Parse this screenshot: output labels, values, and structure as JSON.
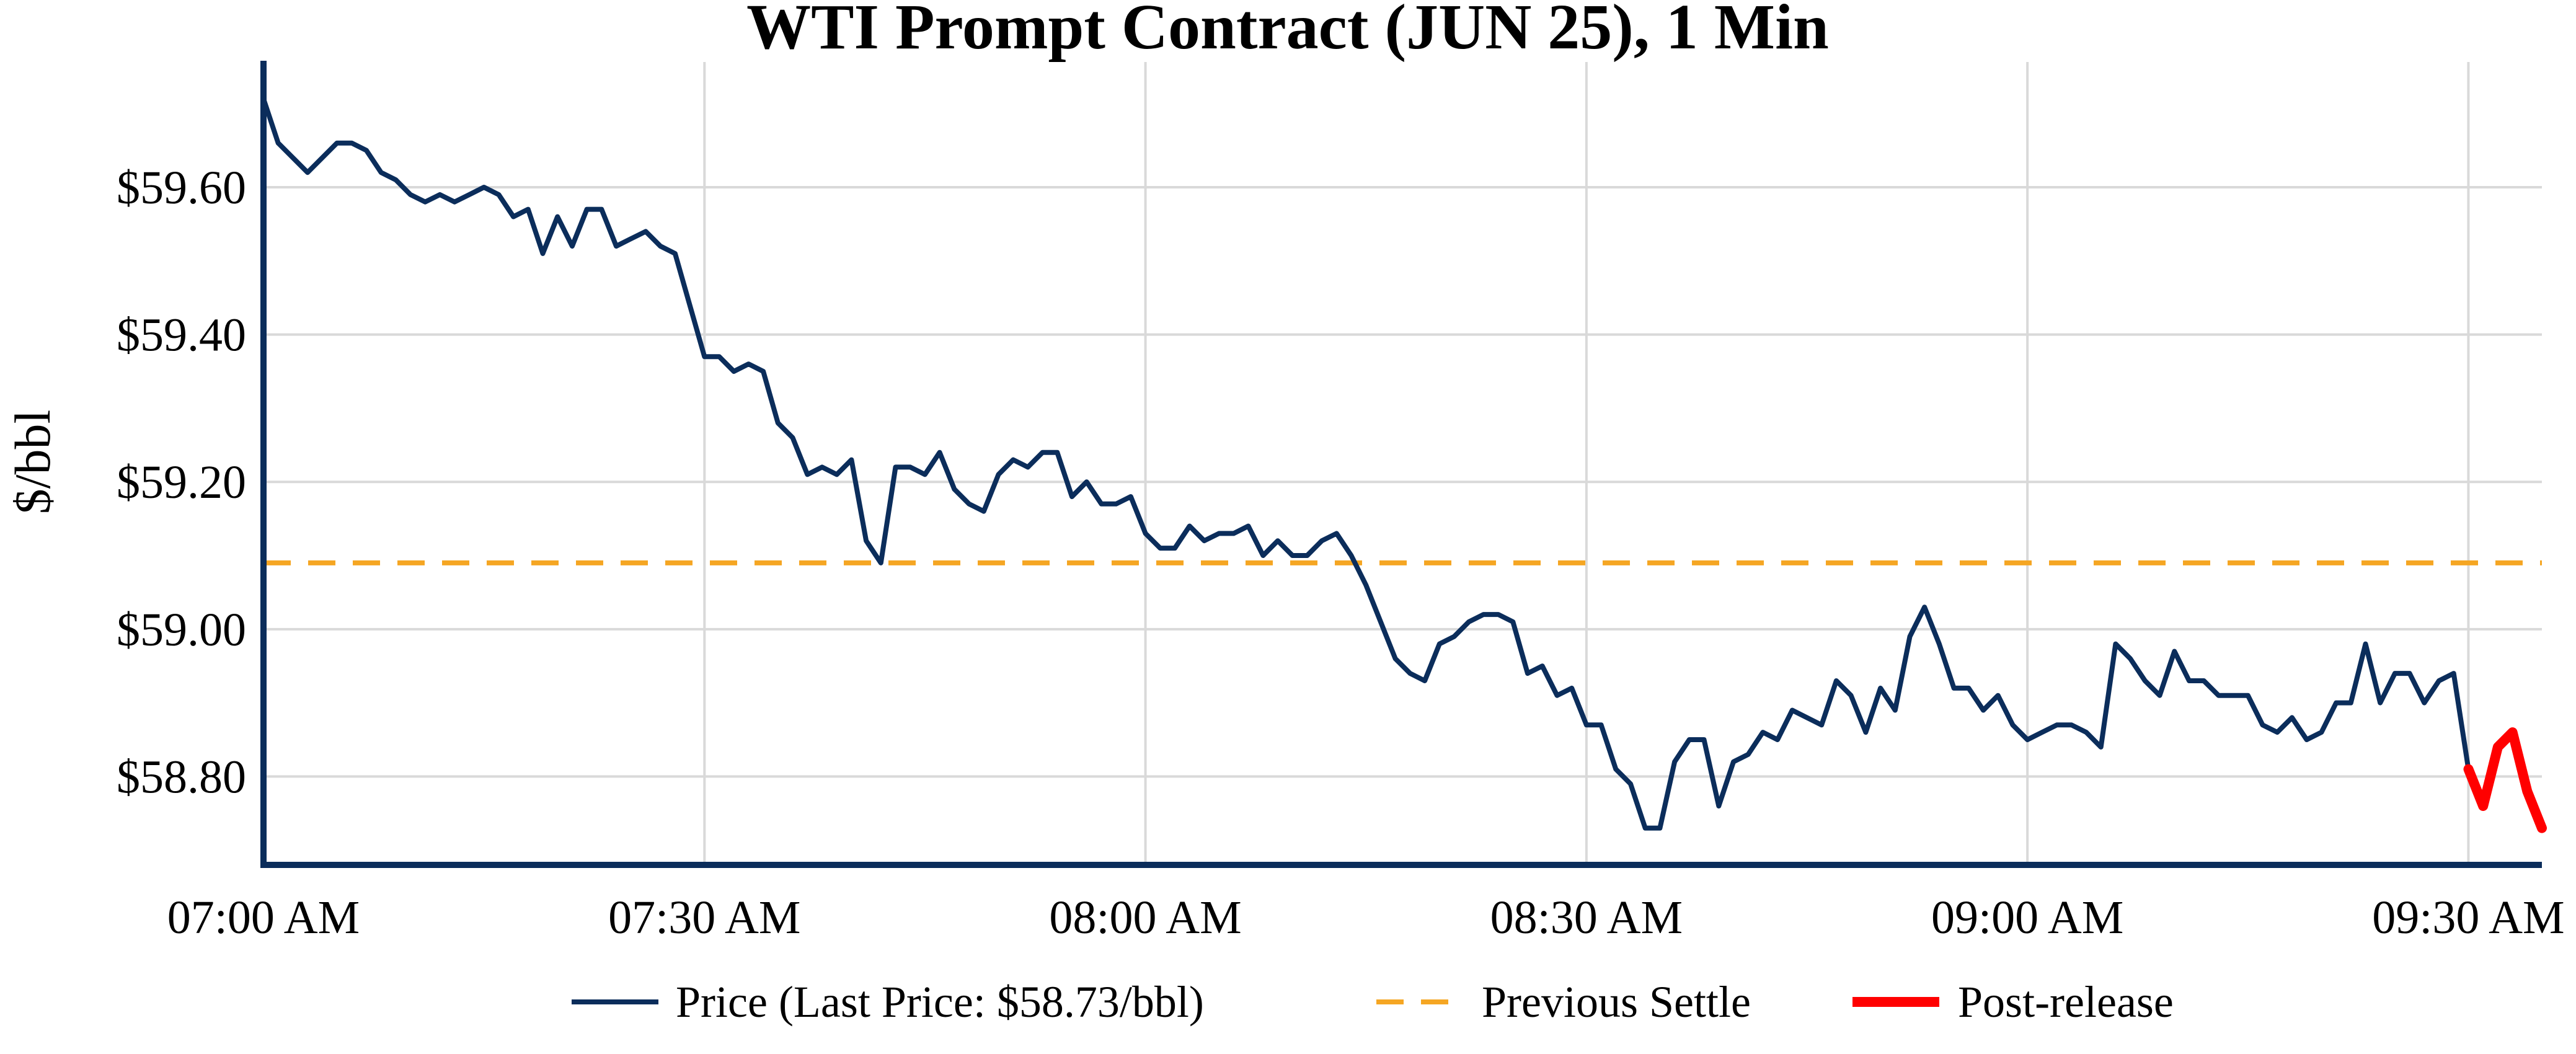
{
  "colors": {
    "price": "#0b2d5b",
    "previous_settle": "#f5a623",
    "post_release": "#ff0000",
    "axis": "#0b2d5b",
    "grid": "#d9d9d9"
  },
  "chart_data": {
    "type": "line",
    "title": "WTI Prompt Contract (JUN 25), 1 Min",
    "xlabel": "",
    "ylabel": "$/bbl",
    "x_ticks": [
      "07:00 AM",
      "07:30 AM",
      "08:00 AM",
      "08:30 AM",
      "09:00 AM",
      "09:30 AM"
    ],
    "y_ticks": [
      "$58.80",
      "$59.00",
      "$59.20",
      "$59.40",
      "$59.60"
    ],
    "y_tick_values": [
      58.8,
      59.0,
      59.2,
      59.4,
      59.6
    ],
    "x_range": [
      "07:00 AM",
      "09:35 AM"
    ],
    "ylim": [
      58.68,
      59.77
    ],
    "grid": true,
    "legend_position": "bottom-center",
    "legend": {
      "price": "Price (Last Price: $58.73/bbl)",
      "previous_settle": "Previous Settle",
      "post_release": "Post-release"
    },
    "previous_settle": 59.09,
    "series": [
      {
        "name": "Price (Last Price: $58.73/bbl)",
        "x": [
          "07:00",
          "07:01",
          "07:02",
          "07:03",
          "07:04",
          "07:05",
          "07:06",
          "07:07",
          "07:08",
          "07:09",
          "07:10",
          "07:11",
          "07:12",
          "07:13",
          "07:14",
          "07:15",
          "07:16",
          "07:17",
          "07:18",
          "07:19",
          "07:20",
          "07:21",
          "07:22",
          "07:23",
          "07:24",
          "07:25",
          "07:26",
          "07:27",
          "07:28",
          "07:29",
          "07:30",
          "07:31",
          "07:32",
          "07:33",
          "07:34",
          "07:35",
          "07:36",
          "07:37",
          "07:38",
          "07:39",
          "07:40",
          "07:41",
          "07:42",
          "07:43",
          "07:44",
          "07:45",
          "07:46",
          "07:47",
          "07:48",
          "07:49",
          "07:50",
          "07:51",
          "07:52",
          "07:53",
          "07:54",
          "07:55",
          "07:56",
          "07:57",
          "07:58",
          "07:59",
          "08:00",
          "08:01",
          "08:02",
          "08:03",
          "08:04",
          "08:05",
          "08:06",
          "08:07",
          "08:08",
          "08:09",
          "08:10",
          "08:11",
          "08:12",
          "08:13",
          "08:14",
          "08:15",
          "08:16",
          "08:17",
          "08:18",
          "08:19",
          "08:20",
          "08:21",
          "08:22",
          "08:23",
          "08:24",
          "08:25",
          "08:26",
          "08:27",
          "08:28",
          "08:29",
          "08:30",
          "08:31",
          "08:32",
          "08:33",
          "08:34",
          "08:35",
          "08:36",
          "08:37",
          "08:38",
          "08:39",
          "08:40",
          "08:41",
          "08:42",
          "08:43",
          "08:44",
          "08:45",
          "08:46",
          "08:47",
          "08:48",
          "08:49",
          "08:50",
          "08:51",
          "08:52",
          "08:53",
          "08:54",
          "08:55",
          "08:56",
          "08:57",
          "08:58",
          "08:59",
          "09:00",
          "09:01",
          "09:02",
          "09:03",
          "09:04",
          "09:05",
          "09:06",
          "09:07",
          "09:08",
          "09:09",
          "09:10",
          "09:11",
          "09:12",
          "09:13",
          "09:14",
          "09:15",
          "09:16",
          "09:17",
          "09:18",
          "09:19",
          "09:20",
          "09:21",
          "09:22",
          "09:23",
          "09:24",
          "09:25",
          "09:26",
          "09:27",
          "09:28",
          "09:29",
          "09:30"
        ],
        "values": [
          59.72,
          59.66,
          59.64,
          59.62,
          59.64,
          59.66,
          59.66,
          59.65,
          59.62,
          59.61,
          59.59,
          59.58,
          59.59,
          59.58,
          59.59,
          59.6,
          59.59,
          59.56,
          59.57,
          59.51,
          59.56,
          59.52,
          59.57,
          59.57,
          59.52,
          59.53,
          59.54,
          59.52,
          59.51,
          59.44,
          59.37,
          59.37,
          59.35,
          59.36,
          59.35,
          59.28,
          59.26,
          59.21,
          59.22,
          59.21,
          59.23,
          59.12,
          59.09,
          59.22,
          59.22,
          59.21,
          59.24,
          59.19,
          59.17,
          59.16,
          59.21,
          59.23,
          59.22,
          59.24,
          59.24,
          59.18,
          59.2,
          59.17,
          59.17,
          59.18,
          59.13,
          59.11,
          59.11,
          59.14,
          59.12,
          59.13,
          59.13,
          59.14,
          59.1,
          59.12,
          59.1,
          59.1,
          59.12,
          59.13,
          59.1,
          59.06,
          59.01,
          58.96,
          58.94,
          58.93,
          58.98,
          58.99,
          59.01,
          59.02,
          59.02,
          59.01,
          58.94,
          58.95,
          58.91,
          58.92,
          58.87,
          58.87,
          58.81,
          58.79,
          58.73,
          58.73,
          58.82,
          58.85,
          58.85,
          58.76,
          58.82,
          58.83,
          58.86,
          58.85,
          58.89,
          58.88,
          58.87,
          58.93,
          58.91,
          58.86,
          58.92,
          58.89,
          58.99,
          59.03,
          58.98,
          58.92,
          58.92,
          58.89,
          58.91,
          58.87,
          58.85,
          58.86,
          58.87,
          58.87,
          58.86,
          58.84,
          58.98,
          58.96,
          58.93,
          58.91,
          58.97,
          58.93,
          58.93,
          58.91,
          58.91,
          58.91,
          58.87,
          58.86,
          58.88,
          58.85,
          58.86,
          58.9,
          58.9,
          58.98,
          58.9,
          58.94,
          58.94,
          58.9,
          58.93,
          58.94,
          58.81
        ]
      },
      {
        "name": "Post-release",
        "x": [
          "09:30",
          "09:31",
          "09:32",
          "09:33",
          "09:34",
          "09:35"
        ],
        "values": [
          58.81,
          58.76,
          58.84,
          58.86,
          58.78,
          58.73
        ]
      }
    ]
  }
}
